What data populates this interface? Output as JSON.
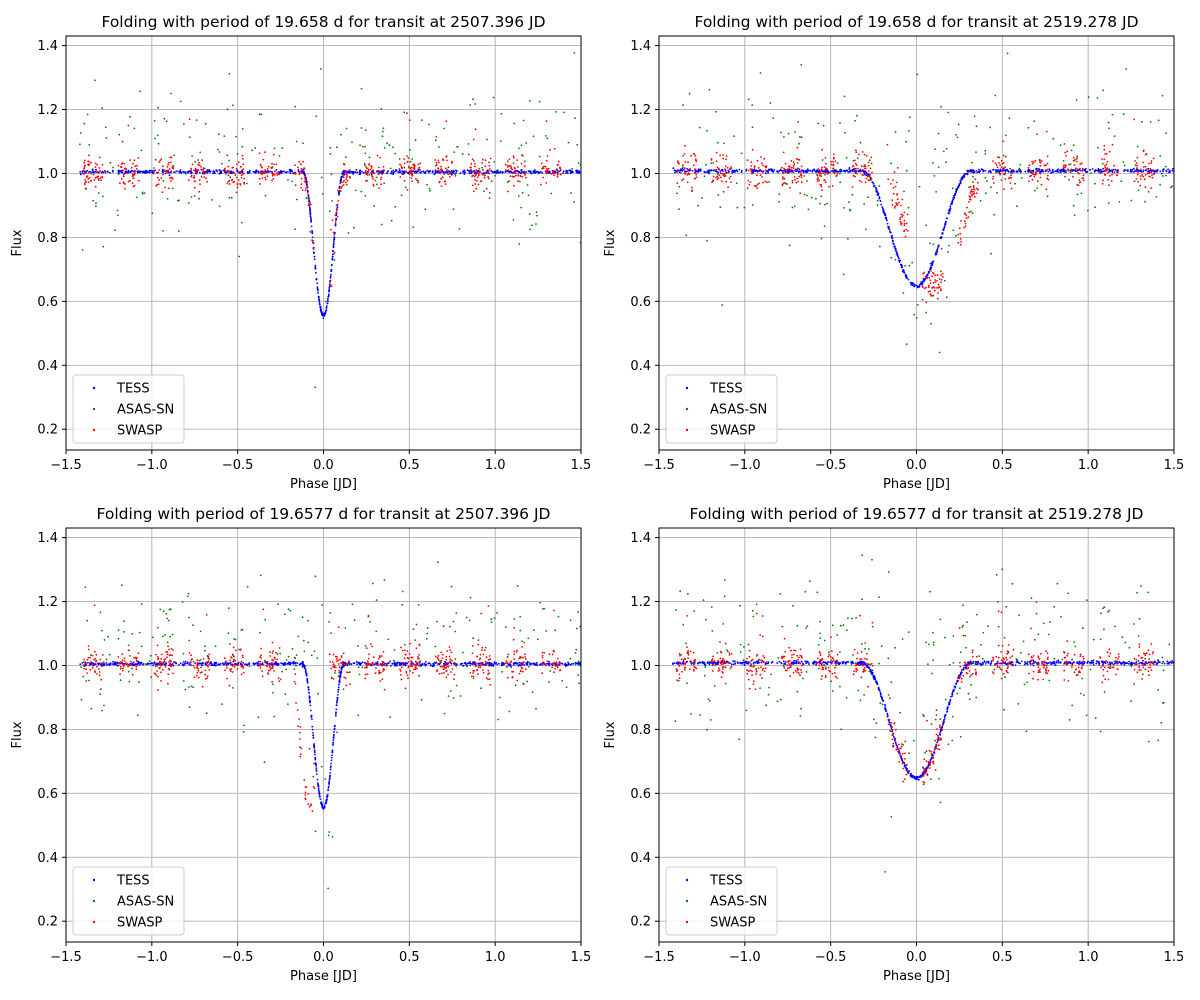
{
  "figure": {
    "width_note": "four-panel phase-folded light curve figure"
  },
  "series_styles": [
    {
      "name": "TESS",
      "color": "#0000ff"
    },
    {
      "name": "ASAS-SN",
      "color": "#008000"
    },
    {
      "name": "SWASP",
      "color": "#ff0000"
    }
  ],
  "chart_data": [
    {
      "type": "scatter",
      "title": "Folding with period of 19.658 d for transit at 2507.396 JD",
      "xlabel": "Phase [JD]",
      "ylabel": "Flux",
      "xlim": [
        -1.5,
        1.5
      ],
      "ylim": [
        0.135,
        1.43
      ],
      "xticks": [
        "−1.5",
        "−1.0",
        "−0.5",
        "0.0",
        "0.5",
        "1.0",
        "1.5"
      ],
      "xtick_values": [
        -1.5,
        -1.0,
        -0.5,
        0.0,
        0.5,
        1.0,
        1.5
      ],
      "yticks": [
        "0.2",
        "0.4",
        "0.6",
        "0.8",
        "1.0",
        "1.2",
        "1.4"
      ],
      "ytick_values": [
        0.2,
        0.4,
        0.6,
        0.8,
        1.0,
        1.2,
        1.4
      ],
      "grid": true,
      "legend_position": "lower-left",
      "dip": {
        "center": 0.0,
        "half_width": 0.12,
        "depth": 0.45
      },
      "series": [
        {
          "name": "TESS",
          "color": "#0000ff",
          "baseline": 1.005,
          "noise": 0.003
        },
        {
          "name": "ASAS-SN",
          "color": "#008000",
          "baseline": 1.02,
          "noise": 0.11
        },
        {
          "name": "SWASP",
          "color": "#ff0000",
          "baseline": 1.005,
          "noise": 0.025,
          "x_shift": 0.0
        }
      ]
    },
    {
      "type": "scatter",
      "title": "Folding with period of 19.658 d for transit at 2519.278 JD",
      "xlabel": "Phase [JD]",
      "ylabel": "Flux",
      "xlim": [
        -1.5,
        1.5
      ],
      "ylim": [
        0.135,
        1.43
      ],
      "xticks": [
        "−1.5",
        "−1.0",
        "−0.5",
        "0.0",
        "0.5",
        "1.0",
        "1.5"
      ],
      "xtick_values": [
        -1.5,
        -1.0,
        -0.5,
        0.0,
        0.5,
        1.0,
        1.5
      ],
      "yticks": [
        "0.2",
        "0.4",
        "0.6",
        "0.8",
        "1.0",
        "1.2",
        "1.4"
      ],
      "ytick_values": [
        0.2,
        0.4,
        0.6,
        0.8,
        1.0,
        1.2,
        1.4
      ],
      "grid": true,
      "legend_position": "lower-left",
      "dip": {
        "center": 0.0,
        "half_width": 0.32,
        "depth": 0.36
      },
      "series": [
        {
          "name": "TESS",
          "color": "#0000ff",
          "baseline": 1.008,
          "noise": 0.003
        },
        {
          "name": "ASAS-SN",
          "color": "#008000",
          "baseline": 1.02,
          "noise": 0.12
        },
        {
          "name": "SWASP",
          "color": "#ff0000",
          "baseline": 1.005,
          "noise": 0.025,
          "x_shift": 0.1
        }
      ]
    },
    {
      "type": "scatter",
      "title": "Folding with period of 19.6577 d for transit at 2507.396 JD",
      "xlabel": "Phase [JD]",
      "ylabel": "Flux",
      "xlim": [
        -1.5,
        1.5
      ],
      "ylim": [
        0.135,
        1.43
      ],
      "xticks": [
        "−1.5",
        "−1.0",
        "−0.5",
        "0.0",
        "0.5",
        "1.0",
        "1.5"
      ],
      "xtick_values": [
        -1.5,
        -1.0,
        -0.5,
        0.0,
        0.5,
        1.0,
        1.5
      ],
      "yticks": [
        "0.2",
        "0.4",
        "0.6",
        "0.8",
        "1.0",
        "1.2",
        "1.4"
      ],
      "ytick_values": [
        0.2,
        0.4,
        0.6,
        0.8,
        1.0,
        1.2,
        1.4
      ],
      "grid": true,
      "legend_position": "lower-left",
      "dip": {
        "center": 0.0,
        "half_width": 0.12,
        "depth": 0.45
      },
      "series": [
        {
          "name": "TESS",
          "color": "#0000ff",
          "baseline": 1.005,
          "noise": 0.003
        },
        {
          "name": "ASAS-SN",
          "color": "#008000",
          "baseline": 1.02,
          "noise": 0.11
        },
        {
          "name": "SWASP",
          "color": "#ff0000",
          "baseline": 1.005,
          "noise": 0.025,
          "x_shift": -0.08
        }
      ]
    },
    {
      "type": "scatter",
      "title": "Folding with period of 19.6577 d for transit at 2519.278 JD",
      "xlabel": "Phase [JD]",
      "ylabel": "Flux",
      "xlim": [
        -1.5,
        1.5
      ],
      "ylim": [
        0.135,
        1.43
      ],
      "xticks": [
        "−1.5",
        "−1.0",
        "−0.5",
        "0.0",
        "0.5",
        "1.0",
        "1.5"
      ],
      "xtick_values": [
        -1.5,
        -1.0,
        -0.5,
        0.0,
        0.5,
        1.0,
        1.5
      ],
      "yticks": [
        "0.2",
        "0.4",
        "0.6",
        "0.8",
        "1.0",
        "1.2",
        "1.4"
      ],
      "ytick_values": [
        0.2,
        0.4,
        0.6,
        0.8,
        1.0,
        1.2,
        1.4
      ],
      "grid": true,
      "legend_position": "lower-left",
      "dip": {
        "center": 0.0,
        "half_width": 0.32,
        "depth": 0.36
      },
      "series": [
        {
          "name": "TESS",
          "color": "#0000ff",
          "baseline": 1.008,
          "noise": 0.003
        },
        {
          "name": "ASAS-SN",
          "color": "#008000",
          "baseline": 1.02,
          "noise": 0.12
        },
        {
          "name": "SWASP",
          "color": "#ff0000",
          "baseline": 1.005,
          "noise": 0.025,
          "x_shift": 0.0
        }
      ]
    }
  ]
}
